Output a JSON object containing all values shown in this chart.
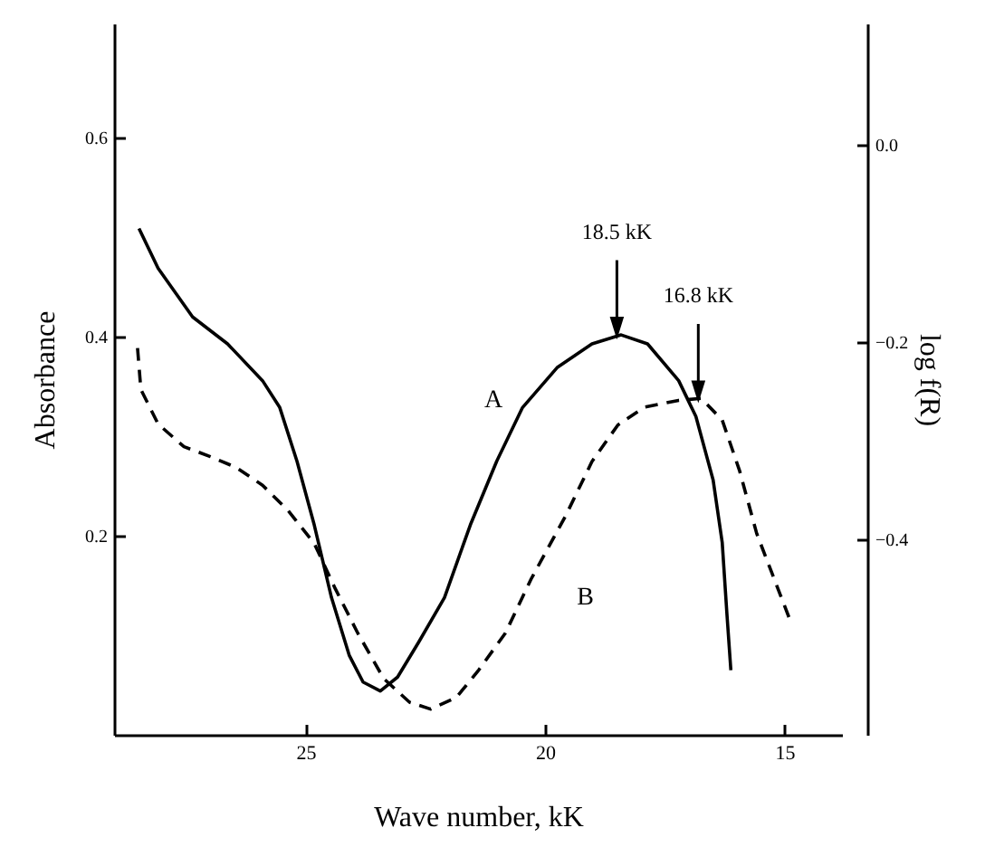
{
  "chart_data": {
    "type": "line",
    "xlabel": "Wave number, kK",
    "ylabel": "Absorbance",
    "y2label": "log f(R)",
    "xlim": [
      29,
      13.8
    ],
    "xticks": [
      25,
      20,
      15
    ],
    "ylim": [
      0,
      0.715
    ],
    "yticks": [
      0.2,
      0.4,
      0.6
    ],
    "y2lim": [
      -0.598,
      0.123
    ],
    "y2ticks": [
      -0.4,
      -0.2,
      {
        "value": 0,
        "label": "0.0"
      }
    ],
    "series": [
      {
        "name": "A",
        "color": "#000000",
        "line_style": "solid",
        "x": [
          28.48,
          28.08,
          27.36,
          26.63,
          25.9,
          25.54,
          25.18,
          24.82,
          24.46,
          24.09,
          23.8,
          23.44,
          23.08,
          22.64,
          22.1,
          21.56,
          21.01,
          20.47,
          19.75,
          19.02,
          18.41,
          17.86,
          17.21,
          16.85,
          16.49,
          16.3,
          16.2,
          16.12
        ],
        "values": [
          0.509,
          0.469,
          0.42,
          0.393,
          0.356,
          0.329,
          0.275,
          0.211,
          0.138,
          0.08,
          0.053,
          0.044,
          0.058,
          0.093,
          0.138,
          0.211,
          0.275,
          0.329,
          0.369,
          0.393,
          0.402,
          0.393,
          0.356,
          0.32,
          0.256,
          0.193,
          0.12,
          0.065
        ]
      },
      {
        "name": "B",
        "color": "#000000",
        "line_style": "dashed",
        "axis": "y2",
        "x": [
          28.51,
          28.44,
          28.08,
          27.54,
          26.99,
          26.45,
          25.9,
          25.36,
          24.82,
          24.38,
          23.91,
          23.37,
          22.83,
          22.39,
          21.85,
          21.38,
          20.83,
          20.29,
          19.57,
          19.02,
          18.48,
          17.93,
          17.21,
          16.74,
          16.3,
          15.94,
          15.58,
          14.89
        ],
        "values": [
          -0.206,
          -0.248,
          -0.283,
          -0.306,
          -0.316,
          -0.327,
          -0.345,
          -0.371,
          -0.404,
          -0.45,
          -0.495,
          -0.541,
          -0.565,
          -0.572,
          -0.56,
          -0.532,
          -0.495,
          -0.44,
          -0.376,
          -0.321,
          -0.284,
          -0.266,
          -0.259,
          -0.257,
          -0.279,
          -0.33,
          -0.394,
          -0.481
        ]
      }
    ],
    "annotations": [
      {
        "text": "18.5 kK",
        "x": 18.5,
        "y": 0.402
      },
      {
        "text": "16.8 kK",
        "x": 16.8,
        "y": 0.338
      }
    ],
    "grid": false,
    "marker": "none"
  }
}
